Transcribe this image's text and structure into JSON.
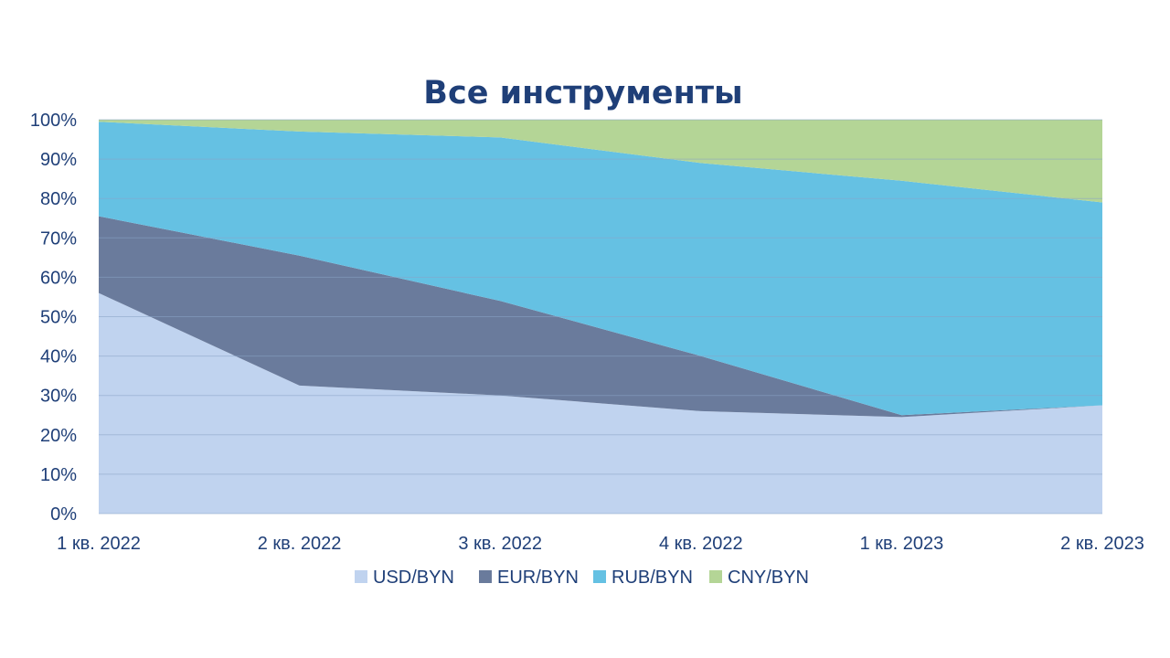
{
  "chart_data": {
    "type": "area",
    "stacking": "percent",
    "title": "Все инструменты",
    "xlabel": "",
    "ylabel": "",
    "categories": [
      "1 кв. 2022",
      "2 кв. 2022",
      "3 кв. 2022",
      "4 кв. 2022",
      "1 кв. 2023",
      "2 кв. 2023"
    ],
    "y_ticks": [
      "0%",
      "10%",
      "20%",
      "30%",
      "40%",
      "50%",
      "60%",
      "70%",
      "80%",
      "90%",
      "100%"
    ],
    "ylim": [
      0,
      100
    ],
    "grid": true,
    "legend": "bottom",
    "series": [
      {
        "name": "USD/BYN",
        "color": "#c0d3ef",
        "values": [
          56,
          32.5,
          30,
          26,
          24.5,
          27.5
        ]
      },
      {
        "name": "EUR/BYN",
        "color": "#6a7b9c",
        "values": [
          19.5,
          33,
          24,
          14,
          0.5,
          0
        ]
      },
      {
        "name": "RUB/BYN",
        "color": "#65c1e3",
        "values": [
          24,
          31.5,
          41.5,
          49,
          59.5,
          51.5
        ]
      },
      {
        "name": "CNY/BYN",
        "color": "#b4d596",
        "values": [
          0.5,
          3,
          4.5,
          11,
          15.5,
          21
        ]
      }
    ]
  }
}
